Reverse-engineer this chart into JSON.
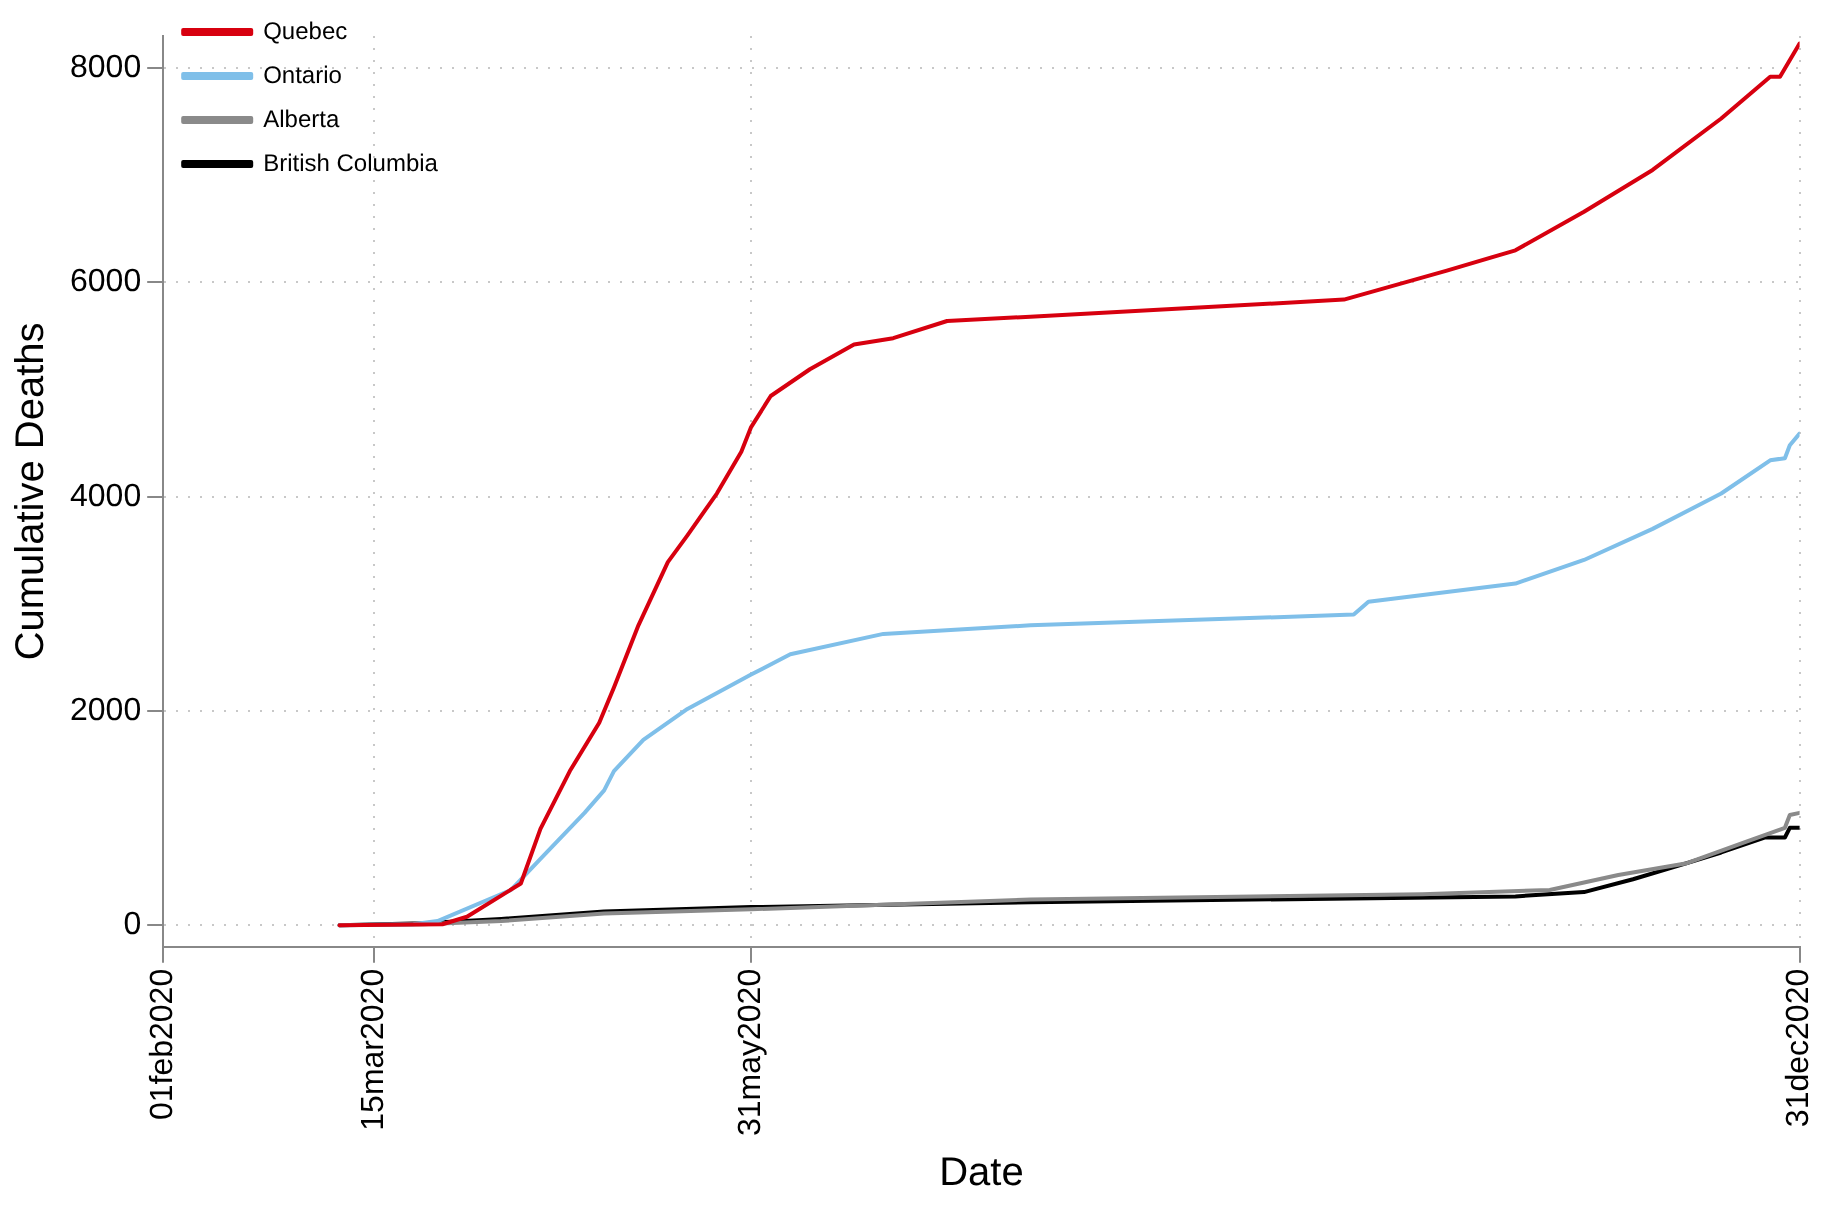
{
  "chart_data": {
    "type": "line",
    "xlabel": "Date",
    "ylabel": "Cumulative Deaths",
    "xlim": [
      "2020-02-01",
      "2020-12-31"
    ],
    "xticks": [
      {
        "value": "2020-02-01",
        "label": "01feb2020"
      },
      {
        "value": "2020-03-15",
        "label": "15mar2020"
      },
      {
        "value": "2020-05-31",
        "label": "31may2020"
      },
      {
        "value": "2020-12-31",
        "label": "31dec2020"
      }
    ],
    "ylim": [
      -200,
      8300
    ],
    "yticks": [
      0,
      2000,
      4000,
      6000,
      8000
    ],
    "grid": true,
    "legend": "top left",
    "marker": "none",
    "line_style": "solid",
    "series": [
      {
        "name": "Quebec",
        "color": "#d7000f",
        "x": [
          "2020-03-08",
          "2020-03-29",
          "2020-04-03",
          "2020-04-14",
          "2020-04-18",
          "2020-04-24",
          "2020-04-30",
          "2020-05-03",
          "2020-05-08",
          "2020-05-14",
          "2020-05-18",
          "2020-05-24",
          "2020-05-29",
          "2020-05-31",
          "2020-06-04",
          "2020-06-12",
          "2020-06-21",
          "2020-06-29",
          "2020-07-10",
          "2020-07-27",
          "2020-09-29",
          "2020-10-20",
          "2020-11-03",
          "2020-11-17",
          "2020-12-01",
          "2020-12-15",
          "2020-12-25",
          "2020-12-27",
          "2020-12-31"
        ],
        "values": [
          0,
          10,
          80,
          390,
          900,
          1440,
          1890,
          2220,
          2800,
          3390,
          3640,
          4030,
          4420,
          4650,
          4940,
          5190,
          5420,
          5480,
          5640,
          5680,
          5840,
          6110,
          6300,
          6660,
          7050,
          7530,
          7920,
          7920,
          8230
        ]
      },
      {
        "name": "Ontario",
        "color": "#7fbfe9",
        "x": [
          "2020-03-08",
          "2020-03-23",
          "2020-03-28",
          "2020-04-12",
          "2020-04-18",
          "2020-04-27",
          "2020-05-01",
          "2020-05-03",
          "2020-05-09",
          "2020-05-18",
          "2020-05-31",
          "2020-06-08",
          "2020-06-27",
          "2020-07-27",
          "2020-10-01",
          "2020-10-04",
          "2020-11-03",
          "2020-11-17",
          "2020-12-01",
          "2020-12-15",
          "2020-12-25",
          "2020-12-28",
          "2020-12-29",
          "2020-12-31"
        ],
        "values": [
          0,
          10,
          40,
          330,
          620,
          1050,
          1260,
          1440,
          1730,
          2020,
          2340,
          2530,
          2720,
          2800,
          2900,
          3020,
          3190,
          3410,
          3700,
          4030,
          4340,
          4360,
          4480,
          4590
        ]
      },
      {
        "name": "Alberta",
        "color": "#8a8a8a",
        "x": [
          "2020-03-08",
          "2020-03-25",
          "2020-04-10",
          "2020-05-01",
          "2020-05-31",
          "2020-07-27",
          "2020-10-15",
          "2020-11-10",
          "2020-11-24",
          "2020-12-08",
          "2020-12-20",
          "2020-12-28",
          "2020-12-29",
          "2020-12-31"
        ],
        "values": [
          0,
          10,
          40,
          110,
          150,
          240,
          290,
          330,
          470,
          580,
          780,
          910,
          1030,
          1050
        ]
      },
      {
        "name": "British Columbia",
        "color": "#000000",
        "x": [
          "2020-03-08",
          "2020-03-25",
          "2020-04-10",
          "2020-05-01",
          "2020-05-31",
          "2020-07-27",
          "2020-11-03",
          "2020-11-17",
          "2020-11-27",
          "2020-12-08",
          "2020-12-15",
          "2020-12-24",
          "2020-12-28",
          "2020-12-29",
          "2020-12-31"
        ],
        "values": [
          0,
          20,
          60,
          130,
          170,
          215,
          270,
          310,
          430,
          580,
          680,
          820,
          820,
          910,
          910
        ]
      }
    ]
  }
}
